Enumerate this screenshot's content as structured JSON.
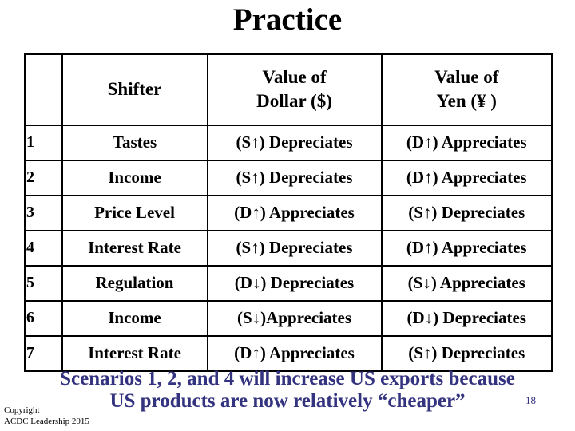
{
  "title": "Practice",
  "table": {
    "headers": {
      "num": "",
      "shifter": "Shifter",
      "dollar": "Value of\nDollar ($)",
      "yen": "Value of\nYen (¥ )"
    },
    "rows": [
      {
        "num": "1",
        "shifter": "Tastes",
        "dollar": "(S↑) Depreciates",
        "yen": "(D↑) Appreciates"
      },
      {
        "num": "2",
        "shifter": "Income",
        "dollar": "(S↑) Depreciates",
        "yen": "(D↑) Appreciates"
      },
      {
        "num": "3",
        "shifter": "Price Level",
        "dollar": "(D↑) Appreciates",
        "yen": "(S↑) Depreciates"
      },
      {
        "num": "4",
        "shifter": "Interest Rate",
        "dollar": "(S↑) Depreciates",
        "yen": "(D↑) Appreciates"
      },
      {
        "num": "5",
        "shifter": "Regulation",
        "dollar": "(D↓) Depreciates",
        "yen": "(S↓) Appreciates"
      },
      {
        "num": "6",
        "shifter": "Income",
        "dollar": "(S↓)Appreciates",
        "yen": "(D↓) Depreciates"
      },
      {
        "num": "7",
        "shifter": "Interest Rate",
        "dollar": "(D↑) Appreciates",
        "yen": "(S↑) Depreciates"
      }
    ]
  },
  "footer": {
    "note": "Scenarios 1, 2, and 4 will increase US exports because\nUS products are now relatively “cheaper”",
    "page_number": "18",
    "copyright": "Copyright\nACDC Leadership 2015"
  },
  "colors": {
    "accent_blue": "#333380",
    "text_black": "#000000",
    "background": "#ffffff"
  }
}
